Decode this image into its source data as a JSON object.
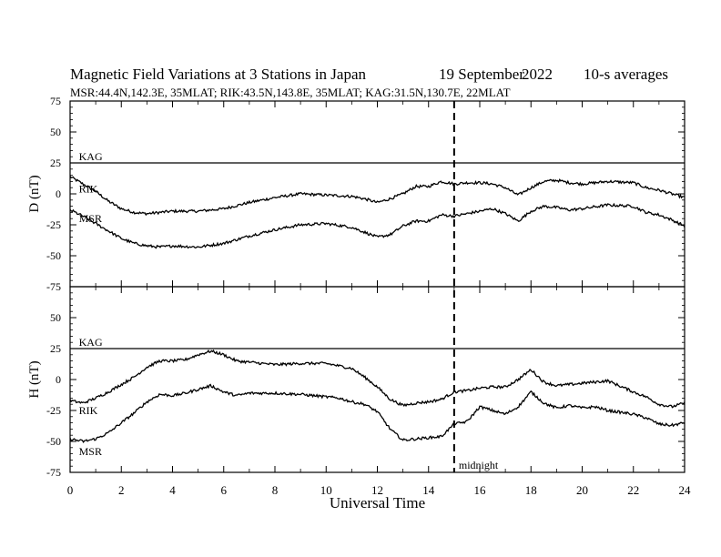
{
  "header": {
    "title": "Magnetic Field Variations at 3 Stations in Japan",
    "date_day": "19 September",
    "date_year": "2022",
    "averaging": "10-s averages",
    "stations_line": "MSR:44.4N,142.3E, 35MLAT;  RIK:43.5N,143.8E, 35MLAT;  KAG:31.5N,130.7E, 22MLAT"
  },
  "chart_data": {
    "type": "line",
    "xlabel": "Universal Time",
    "xlim": [
      0,
      24
    ],
    "xticks": [
      0,
      2,
      4,
      6,
      8,
      10,
      12,
      14,
      16,
      18,
      20,
      22,
      24
    ],
    "marker": {
      "x": 15,
      "label": "midnight"
    },
    "panels": [
      {
        "ylabel": "D (nT)",
        "ylim": [
          -75,
          75
        ],
        "yticks": [
          75,
          50,
          25,
          0,
          -25,
          -50,
          -75
        ],
        "series": [
          {
            "name": "KAG",
            "x": [
              0,
              24
            ],
            "y": [
              25,
              25
            ]
          },
          {
            "name": "RIK",
            "x": [
              0,
              0.5,
              1,
              1.5,
              2,
              2.5,
              3,
              3.5,
              4,
              5,
              6,
              7,
              8,
              9,
              10,
              11,
              11.5,
              12,
              12.5,
              13,
              13.5,
              14,
              14.5,
              15,
              15.5,
              16,
              16.5,
              17,
              17.5,
              18,
              18.5,
              19,
              19.5,
              20,
              21,
              22,
              22.5,
              23,
              23.5,
              24
            ],
            "y": [
              14,
              8,
              2,
              -6,
              -12,
              -15,
              -16,
              -15,
              -14,
              -14,
              -12,
              -7,
              -3,
              0,
              -1,
              -2,
              -4,
              -7,
              -4,
              0,
              6,
              6,
              10,
              8,
              9,
              9,
              8,
              5,
              -1,
              5,
              10,
              11,
              9,
              8,
              10,
              9,
              5,
              3,
              0,
              -3
            ]
          },
          {
            "name": "MSR",
            "x": [
              0,
              0.5,
              1,
              1.5,
              2,
              2.5,
              3,
              3.5,
              4,
              5,
              6,
              7,
              8,
              9,
              10,
              11,
              11.5,
              12,
              12.5,
              13,
              13.5,
              14,
              14.5,
              15,
              15.5,
              16,
              16.5,
              17,
              17.5,
              18,
              18.5,
              19,
              19.5,
              20,
              21,
              22,
              22.5,
              23,
              23.5,
              24
            ],
            "y": [
              -13,
              -18,
              -24,
              -30,
              -36,
              -40,
              -42,
              -43,
              -42,
              -43,
              -40,
              -34,
              -29,
              -25,
              -24,
              -27,
              -31,
              -35,
              -33,
              -26,
              -22,
              -22,
              -17,
              -18,
              -16,
              -14,
              -12,
              -16,
              -22,
              -14,
              -10,
              -11,
              -13,
              -12,
              -9,
              -10,
              -15,
              -17,
              -21,
              -26
            ]
          }
        ],
        "labels": [
          {
            "text": "KAG",
            "x": 0.2,
            "y": 30
          },
          {
            "text": "RIK",
            "x": 0.2,
            "y": 4
          },
          {
            "text": "MSR",
            "x": 0.2,
            "y": -20
          }
        ]
      },
      {
        "ylabel": "H (nT)",
        "ylim": [
          -75,
          75
        ],
        "yticks": [
          75,
          50,
          25,
          0,
          -25,
          -50,
          -75
        ],
        "series": [
          {
            "name": "KAG",
            "x": [
              0,
              24
            ],
            "y": [
              25,
              25
            ]
          },
          {
            "name": "RIK",
            "x": [
              0,
              0.5,
              1,
              1.5,
              2,
              2.5,
              3,
              3.5,
              4,
              4.5,
              5,
              5.5,
              6,
              6.5,
              7,
              8,
              9,
              10,
              10.5,
              11,
              11.5,
              12,
              12.5,
              13,
              13.5,
              14,
              14.5,
              15,
              15.5,
              16,
              16.5,
              17,
              17.5,
              18,
              18.5,
              19,
              19.5,
              20,
              20.5,
              21,
              22,
              22.5,
              23,
              23.5,
              24
            ],
            "y": [
              -17,
              -19,
              -15,
              -10,
              -4,
              2,
              10,
              15,
              15,
              16,
              20,
              23,
              20,
              15,
              14,
              12,
              13,
              13,
              11,
              9,
              2,
              -6,
              -16,
              -21,
              -19,
              -18,
              -16,
              -10,
              -9,
              -7,
              -6,
              -6,
              0,
              8,
              -2,
              -5,
              -4,
              -3,
              -2,
              -1,
              -10,
              -14,
              -20,
              -22,
              -19
            ]
          },
          {
            "name": "MSR",
            "x": [
              0,
              0.5,
              1,
              1.5,
              2,
              2.5,
              3,
              3.5,
              4,
              4.5,
              5,
              5.5,
              6,
              6.5,
              7,
              8,
              9,
              10,
              10.5,
              11,
              11.5,
              12,
              12.5,
              13,
              13.5,
              14,
              14.5,
              15,
              15.5,
              16,
              16.5,
              17,
              17.5,
              18,
              18.5,
              19,
              19.5,
              20,
              20.5,
              21,
              22,
              22.5,
              23,
              23.5,
              24
            ],
            "y": [
              -48,
              -50,
              -48,
              -43,
              -35,
              -27,
              -18,
              -12,
              -13,
              -11,
              -8,
              -5,
              -10,
              -13,
              -11,
              -11,
              -12,
              -14,
              -15,
              -18,
              -20,
              -26,
              -40,
              -49,
              -48,
              -47,
              -46,
              -36,
              -34,
              -22,
              -25,
              -28,
              -22,
              -10,
              -19,
              -23,
              -21,
              -23,
              -22,
              -25,
              -28,
              -31,
              -36,
              -37,
              -35
            ]
          }
        ],
        "labels": [
          {
            "text": "KAG",
            "x": 0.2,
            "y": 30
          },
          {
            "text": "RIK",
            "x": 0.2,
            "y": -25
          },
          {
            "text": "MSR",
            "x": 0.2,
            "y": -58
          }
        ]
      }
    ]
  }
}
